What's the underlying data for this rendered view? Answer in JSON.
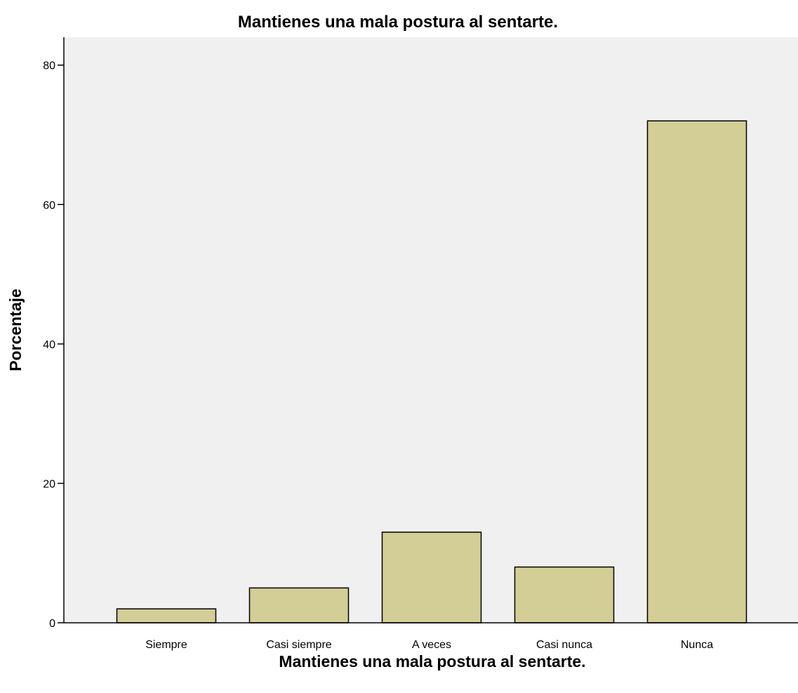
{
  "chart_data": {
    "type": "bar",
    "title": "Mantienes una mala postura al sentarte.",
    "xlabel": "Mantienes una mala postura al sentarte.",
    "ylabel": "Porcentaje",
    "categories": [
      "Siempre",
      "Casi siempre",
      "A veces",
      "Casi nunca",
      "Nunca"
    ],
    "values": [
      2,
      5,
      13,
      8,
      72
    ],
    "ylim": [
      0,
      84
    ],
    "yticks": [
      0,
      20,
      40,
      60,
      80
    ],
    "grid": false,
    "legend": "none",
    "colors": {
      "plot_background": "#f0f0f0",
      "bar_fill": "#d3cd96",
      "bar_stroke": "#000000",
      "axis": "#000000"
    }
  }
}
